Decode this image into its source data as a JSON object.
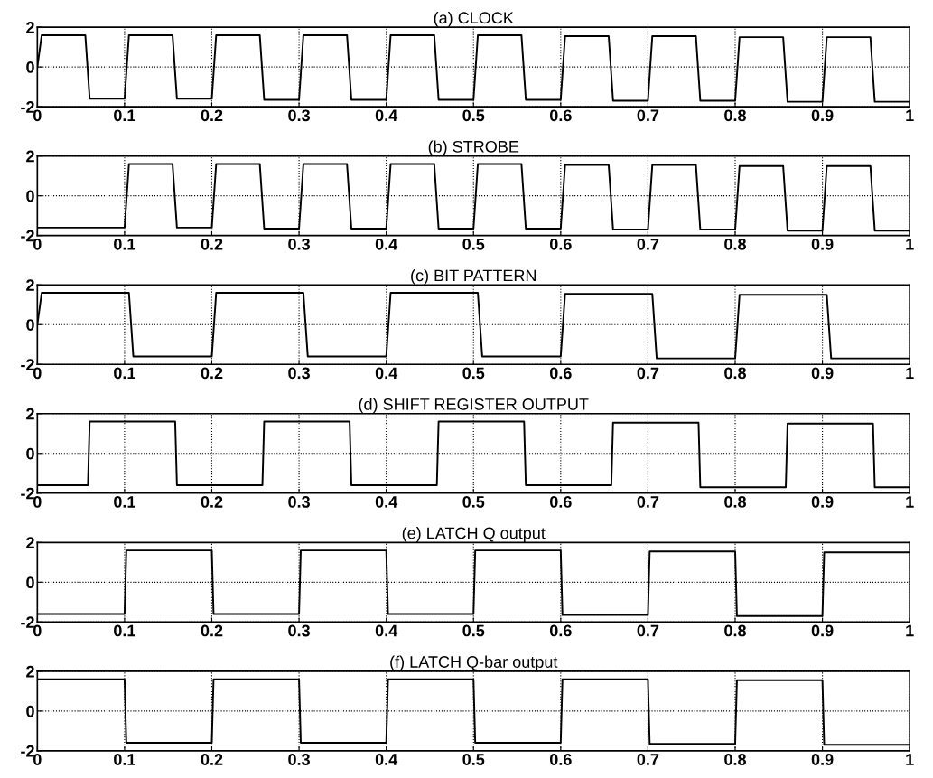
{
  "chart_data": [
    {
      "type": "line",
      "title": "(a) CLOCK",
      "color": "#000000",
      "xlim": [
        0,
        1
      ],
      "ylim": [
        -2,
        2
      ],
      "xticks": [
        0,
        0.1,
        0.2,
        0.3,
        0.4,
        0.5,
        0.6,
        0.7,
        0.8,
        0.9,
        1
      ],
      "yticks": [
        -2,
        0,
        2
      ],
      "grid": true,
      "x": [
        0,
        0.005,
        0.055,
        0.06,
        0.1,
        0.105,
        0.155,
        0.16,
        0.2,
        0.205,
        0.255,
        0.26,
        0.3,
        0.305,
        0.355,
        0.36,
        0.4,
        0.405,
        0.455,
        0.46,
        0.5,
        0.505,
        0.555,
        0.56,
        0.6,
        0.605,
        0.655,
        0.66,
        0.7,
        0.705,
        0.755,
        0.76,
        0.8,
        0.805,
        0.855,
        0.86,
        0.9,
        0.905,
        0.955,
        0.96,
        1
      ],
      "values": [
        0,
        1.6,
        1.6,
        -1.6,
        -1.6,
        1.6,
        1.6,
        -1.6,
        -1.6,
        1.6,
        1.6,
        -1.65,
        -1.65,
        1.6,
        1.6,
        -1.65,
        -1.65,
        1.6,
        1.6,
        -1.65,
        -1.65,
        1.6,
        1.6,
        -1.65,
        -1.65,
        1.55,
        1.55,
        -1.7,
        -1.7,
        1.55,
        1.55,
        -1.7,
        -1.7,
        1.5,
        1.5,
        -1.75,
        -1.75,
        1.5,
        1.5,
        -1.75,
        -1.75
      ]
    },
    {
      "type": "line",
      "title": "(b) STROBE",
      "color": "#000000",
      "xlim": [
        0,
        1
      ],
      "ylim": [
        -2,
        2
      ],
      "xticks": [
        0,
        0.1,
        0.2,
        0.3,
        0.4,
        0.5,
        0.6,
        0.7,
        0.8,
        0.9,
        1
      ],
      "yticks": [
        -2,
        0,
        2
      ],
      "grid": true,
      "x": [
        0,
        0.1,
        0.105,
        0.155,
        0.16,
        0.2,
        0.205,
        0.255,
        0.26,
        0.3,
        0.305,
        0.355,
        0.36,
        0.4,
        0.405,
        0.455,
        0.46,
        0.5,
        0.505,
        0.555,
        0.56,
        0.6,
        0.605,
        0.655,
        0.66,
        0.7,
        0.705,
        0.755,
        0.76,
        0.8,
        0.805,
        0.855,
        0.86,
        0.9,
        0.905,
        0.955,
        0.96,
        1
      ],
      "values": [
        -1.6,
        -1.6,
        1.6,
        1.6,
        -1.6,
        -1.6,
        1.6,
        1.6,
        -1.65,
        -1.65,
        1.6,
        1.6,
        -1.65,
        -1.65,
        1.6,
        1.6,
        -1.65,
        -1.65,
        1.6,
        1.6,
        -1.65,
        -1.65,
        1.55,
        1.55,
        -1.7,
        -1.7,
        1.55,
        1.55,
        -1.7,
        -1.7,
        1.5,
        1.5,
        -1.75,
        -1.75,
        1.5,
        1.5,
        -1.75,
        -1.75
      ]
    },
    {
      "type": "line",
      "title": "(c) BIT PATTERN",
      "color": "#000000",
      "xlim": [
        0,
        1
      ],
      "ylim": [
        -2,
        2
      ],
      "xticks": [
        0,
        0.1,
        0.2,
        0.3,
        0.4,
        0.5,
        0.6,
        0.7,
        0.8,
        0.9,
        1
      ],
      "yticks": [
        -2,
        0,
        2
      ],
      "grid": true,
      "x": [
        0,
        0.005,
        0.105,
        0.11,
        0.2,
        0.205,
        0.305,
        0.31,
        0.4,
        0.405,
        0.505,
        0.51,
        0.6,
        0.605,
        0.705,
        0.71,
        0.8,
        0.805,
        0.905,
        0.91,
        1
      ],
      "values": [
        0,
        1.6,
        1.6,
        -1.6,
        -1.6,
        1.6,
        1.6,
        -1.6,
        -1.6,
        1.6,
        1.6,
        -1.6,
        -1.6,
        1.55,
        1.55,
        -1.7,
        -1.7,
        1.5,
        1.5,
        -1.7,
        -1.7
      ]
    },
    {
      "type": "line",
      "title": "(d) SHIFT REGISTER OUTPUT",
      "color": "#000000",
      "xlim": [
        0,
        1
      ],
      "ylim": [
        -2,
        2
      ],
      "xticks": [
        0,
        0.1,
        0.2,
        0.3,
        0.4,
        0.5,
        0.6,
        0.7,
        0.8,
        0.9,
        1
      ],
      "yticks": [
        -2,
        0,
        2
      ],
      "grid": true,
      "x": [
        0,
        0.058,
        0.06,
        0.158,
        0.16,
        0.258,
        0.26,
        0.358,
        0.36,
        0.458,
        0.46,
        0.558,
        0.56,
        0.658,
        0.66,
        0.758,
        0.76,
        0.858,
        0.86,
        0.958,
        0.96,
        1
      ],
      "values": [
        -1.6,
        -1.6,
        1.6,
        1.6,
        -1.6,
        -1.6,
        1.6,
        1.6,
        -1.6,
        -1.6,
        1.6,
        1.6,
        -1.6,
        -1.6,
        1.55,
        1.55,
        -1.7,
        -1.7,
        1.5,
        1.5,
        -1.7,
        -1.7
      ]
    },
    {
      "type": "line",
      "title": "(e) LATCH Q output",
      "color": "#000000",
      "xlim": [
        0,
        1
      ],
      "ylim": [
        -2,
        2
      ],
      "xticks": [
        0,
        0.1,
        0.2,
        0.3,
        0.4,
        0.5,
        0.6,
        0.7,
        0.8,
        0.9,
        1
      ],
      "yticks": [
        -2,
        0,
        2
      ],
      "grid": true,
      "x": [
        0,
        0.1,
        0.102,
        0.2,
        0.202,
        0.3,
        0.302,
        0.4,
        0.402,
        0.5,
        0.502,
        0.6,
        0.602,
        0.7,
        0.702,
        0.8,
        0.802,
        0.9,
        0.902,
        1
      ],
      "values": [
        -1.6,
        -1.6,
        1.6,
        1.6,
        -1.6,
        -1.6,
        1.6,
        1.6,
        -1.6,
        -1.6,
        1.6,
        1.6,
        -1.65,
        -1.65,
        1.55,
        1.55,
        -1.7,
        -1.7,
        1.5,
        1.5
      ]
    },
    {
      "type": "line",
      "title": "(f) LATCH Q-bar output",
      "color": "#000000",
      "xlim": [
        0,
        1
      ],
      "ylim": [
        -2,
        2
      ],
      "xticks": [
        0,
        0.1,
        0.2,
        0.3,
        0.4,
        0.5,
        0.6,
        0.7,
        0.8,
        0.9,
        1
      ],
      "yticks": [
        -2,
        0,
        2
      ],
      "grid": true,
      "x": [
        0,
        0.1,
        0.102,
        0.2,
        0.202,
        0.3,
        0.302,
        0.4,
        0.402,
        0.5,
        0.502,
        0.6,
        0.602,
        0.7,
        0.702,
        0.8,
        0.802,
        0.9,
        0.902,
        1
      ],
      "values": [
        1.6,
        1.6,
        -1.6,
        -1.6,
        1.6,
        1.6,
        -1.6,
        -1.6,
        1.6,
        1.6,
        -1.6,
        -1.6,
        1.6,
        1.6,
        -1.65,
        -1.65,
        1.55,
        1.55,
        -1.7,
        -1.7
      ]
    }
  ]
}
